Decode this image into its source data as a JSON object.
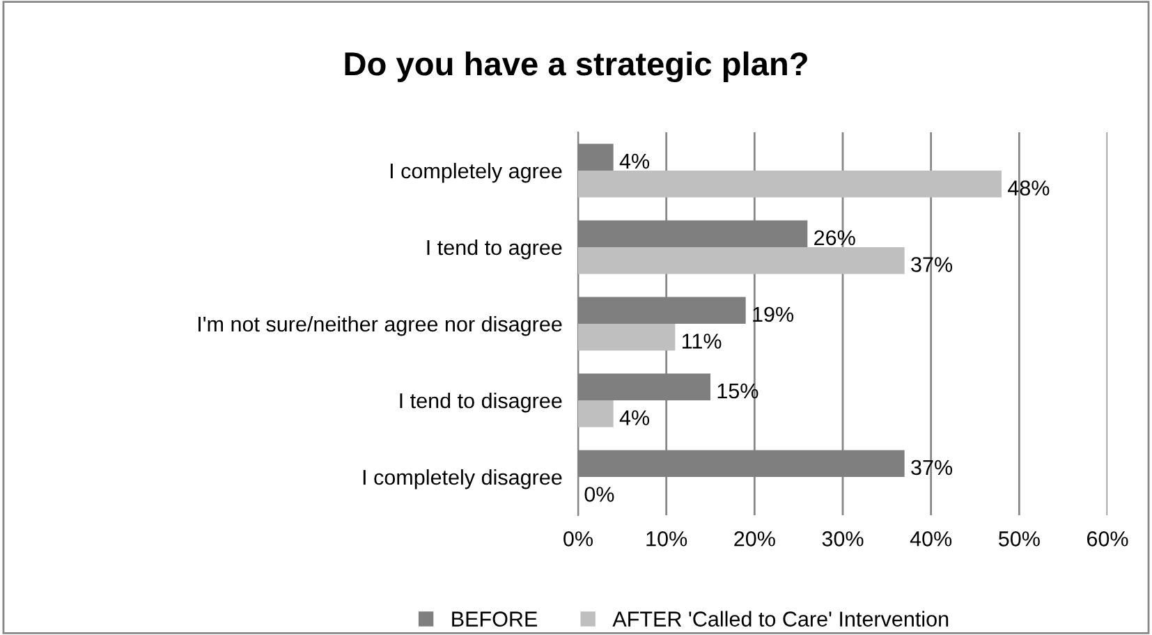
{
  "chart_data": {
    "type": "bar",
    "orientation": "horizontal",
    "title": "Do you have a strategic plan?",
    "categories": [
      "I completely agree",
      "I tend to agree",
      "I'm not sure/neither agree nor disagree",
      "I tend to disagree",
      "I completely disagree"
    ],
    "series": [
      {
        "name": "BEFORE",
        "color": "#7f7f7f",
        "values": [
          4,
          26,
          19,
          15,
          37
        ],
        "value_labels": [
          "4%",
          "26%",
          "19%",
          "15%",
          "37%"
        ]
      },
      {
        "name": "AFTER 'Called to Care' Intervention",
        "color": "#bfbfbf",
        "values": [
          48,
          37,
          11,
          4,
          0
        ],
        "value_labels": [
          "48%",
          "37%",
          "11%",
          "4%",
          "0%"
        ]
      }
    ],
    "xlim": [
      0,
      60
    ],
    "xticks": [
      {
        "value": 0,
        "label": "0%"
      },
      {
        "value": 10,
        "label": "10%"
      },
      {
        "value": 20,
        "label": "20%"
      },
      {
        "value": 30,
        "label": "30%"
      },
      {
        "value": 40,
        "label": "40%"
      },
      {
        "value": 50,
        "label": "50%"
      },
      {
        "value": 60,
        "label": "60%"
      }
    ],
    "grid": "x",
    "legend": "bottom"
  }
}
